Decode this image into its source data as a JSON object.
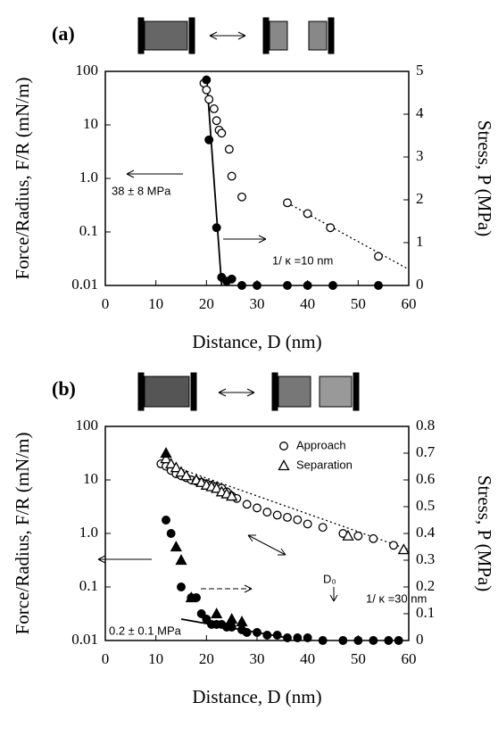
{
  "chart_data": [
    {
      "type": "scatter",
      "panel_label": "(a)",
      "xlabel": "Distance, D (nm)",
      "ylabel": "Force/Radius, F/R (mN/m)",
      "y2label": "Stress, P (MPa)",
      "xlim": [
        0,
        60
      ],
      "xticks": [
        0,
        10,
        20,
        30,
        40,
        50,
        60
      ],
      "yscale": "log",
      "ylim": [
        0.01,
        100
      ],
      "yticks": [
        0.01,
        0.1,
        {
          "value": 1,
          "label": "1.0"
        },
        10,
        100
      ],
      "y2lim": [
        0,
        5
      ],
      "y2ticks": [
        0,
        1,
        2,
        3,
        4,
        5
      ],
      "annotations": [
        "38 ± 8 MPa",
        "1/ κ =10 nm"
      ],
      "series": [
        {
          "marker": "circle",
          "filled": false,
          "color": "#000",
          "axis": "y",
          "x": [
            19.5,
            20,
            20.5,
            21.5,
            22,
            22.5,
            23,
            24.5,
            25,
            27,
            36,
            40,
            44.5,
            54
          ],
          "values": [
            60,
            45,
            30,
            20,
            12,
            8,
            7,
            3.5,
            1.1,
            0.45,
            0.35,
            0.22,
            0.12,
            0.035
          ]
        },
        {
          "marker": "circle",
          "filled": true,
          "color": "#000",
          "axis": "y2",
          "x": [
            20,
            20.5,
            22,
            23,
            24,
            25,
            27,
            30,
            36,
            40,
            45,
            54
          ],
          "values": [
            4.8,
            3.4,
            1.35,
            0.19,
            0.1,
            0.15,
            0,
            0,
            0,
            0,
            0,
            0
          ]
        }
      ],
      "fits": [
        {
          "style": "solid",
          "color": "#000",
          "axis": "y2",
          "x": [
            20,
            23
          ],
          "values": [
            4.9,
            0
          ]
        },
        {
          "style": "dotted",
          "color": "#000",
          "axis": "y",
          "x": [
            36,
            60
          ],
          "values": [
            0.35,
            0.02
          ]
        }
      ]
    },
    {
      "type": "scatter",
      "panel_label": "(b)",
      "xlabel": "Distance, D (nm)",
      "ylabel": "Force/Radius, F/R (mN/m)",
      "y2label": "Stress, P (MPa)",
      "xlim": [
        0,
        60
      ],
      "xticks": [
        0,
        10,
        20,
        30,
        40,
        50,
        60
      ],
      "yscale": "log",
      "ylim": [
        0.01,
        100
      ],
      "yticks": [
        0.01,
        0.1,
        {
          "value": 1,
          "label": "1.0"
        },
        10,
        100
      ],
      "y2lim": [
        0,
        0.8
      ],
      "y2ticks": [
        0,
        0.1,
        0.2,
        0.3,
        0.4,
        0.5,
        0.6,
        0.7,
        0.8
      ],
      "annotations": [
        "1/ κ =30 nm",
        "0.2 ± 0.1 MPa",
        "D₀"
      ],
      "series": [
        {
          "name": "Approach",
          "marker": "circle",
          "filled": false,
          "color": "#000",
          "axis": "y",
          "x": [
            11,
            12,
            13,
            14,
            15,
            16,
            17,
            18,
            19,
            20,
            21,
            22,
            23,
            24,
            25,
            26,
            28,
            30,
            32,
            34,
            36,
            38,
            40,
            43,
            47,
            50,
            53,
            57
          ],
          "values": [
            20,
            18,
            15,
            13,
            12,
            11,
            10,
            9.5,
            9,
            8.5,
            8,
            7.5,
            7,
            6,
            5,
            4.5,
            3.5,
            3,
            2.5,
            2.2,
            2,
            1.8,
            1.5,
            1.3,
            1,
            0.9,
            0.8,
            0.6
          ]
        },
        {
          "name": "Separation",
          "marker": "triangle",
          "filled": false,
          "color": "#000",
          "axis": "y",
          "x": [
            12,
            13,
            14,
            15,
            16,
            18,
            19,
            20,
            21,
            22,
            23,
            24,
            25,
            48,
            59
          ],
          "values": [
            25,
            20,
            17,
            14,
            12,
            10,
            9,
            8,
            7.5,
            7,
            6,
            5.5,
            5,
            0.9,
            0.5
          ]
        },
        {
          "marker": "circle",
          "filled": true,
          "color": "#000",
          "axis": "y2",
          "x": [
            12,
            13,
            15,
            17,
            18,
            19,
            20,
            21,
            22,
            23,
            24,
            25,
            27,
            28,
            30,
            32,
            34,
            36,
            38,
            40,
            43,
            47,
            50,
            53,
            56,
            58
          ],
          "values": [
            0.45,
            0.4,
            0.2,
            0.16,
            0.16,
            0.1,
            0.08,
            0.06,
            0.06,
            0.06,
            0.05,
            0.05,
            0.04,
            0.03,
            0.03,
            0.02,
            0.02,
            0.01,
            0.01,
            0.01,
            0,
            0,
            0,
            0,
            0,
            0
          ]
        },
        {
          "marker": "triangle",
          "filled": true,
          "color": "#000",
          "axis": "y2",
          "x": [
            12,
            14,
            15,
            17,
            22,
            25,
            27
          ],
          "values": [
            0.7,
            0.35,
            0.3,
            0.16,
            0.1,
            0.08,
            0.07
          ]
        }
      ],
      "fits": [
        {
          "style": "dotted",
          "color": "#000",
          "axis": "y",
          "x": [
            12,
            60
          ],
          "values": [
            20,
            0.5
          ]
        },
        {
          "style": "solid",
          "color": "#000",
          "axis": "y2",
          "x": [
            15,
            36
          ],
          "values": [
            0.08,
            0.01
          ]
        }
      ]
    }
  ]
}
